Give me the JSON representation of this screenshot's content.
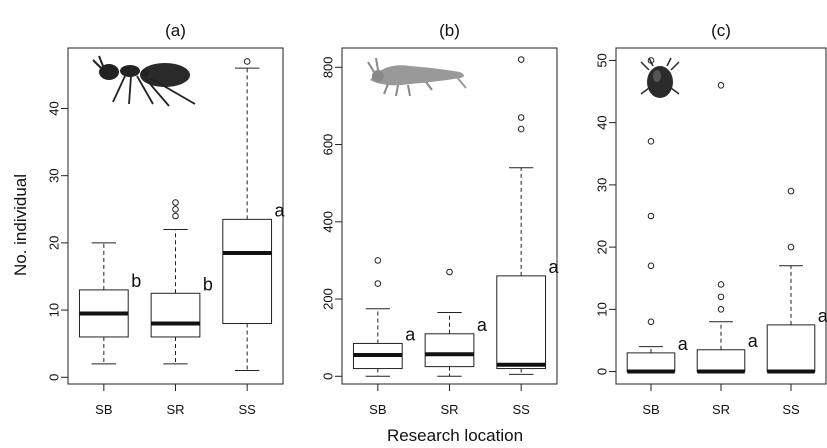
{
  "figure": {
    "ylabel": "No. individual",
    "xlabel": "Research location"
  },
  "icons": [
    "ant-icon",
    "springtail-icon",
    "mite-icon"
  ],
  "chart_data": [
    {
      "type": "box",
      "title": "(a)",
      "categories": [
        "SB",
        "SR",
        "SS"
      ],
      "ylim": [
        -1,
        49
      ],
      "yticks": [
        0,
        10,
        20,
        30,
        40
      ],
      "boxes": [
        {
          "category": "SB",
          "min": 2,
          "q1": 6,
          "median": 9.5,
          "q3": 13,
          "max": 20,
          "outliers": [],
          "letter": "b"
        },
        {
          "category": "SR",
          "min": 2,
          "q1": 6,
          "median": 8,
          "q3": 12.5,
          "max": 22,
          "outliers": [
            24,
            25,
            26
          ],
          "letter": "b"
        },
        {
          "category": "SS",
          "min": 1,
          "q1": 8,
          "median": 18.5,
          "q3": 23.5,
          "max": 46,
          "outliers": [
            47
          ],
          "letter": "a"
        }
      ]
    },
    {
      "type": "box",
      "title": "(b)",
      "categories": [
        "SB",
        "SR",
        "SS"
      ],
      "ylim": [
        -20,
        850
      ],
      "yticks": [
        0,
        200,
        400,
        600,
        800
      ],
      "boxes": [
        {
          "category": "SB",
          "min": 0,
          "q1": 20,
          "median": 55,
          "q3": 85,
          "max": 175,
          "outliers": [
            240,
            300
          ],
          "letter": "a"
        },
        {
          "category": "SR",
          "min": 0,
          "q1": 25,
          "median": 57,
          "q3": 110,
          "max": 165,
          "outliers": [
            270
          ],
          "letter": "a"
        },
        {
          "category": "SS",
          "min": 5,
          "q1": 20,
          "median": 30,
          "q3": 260,
          "max": 540,
          "outliers": [
            640,
            670,
            820
          ],
          "letter": "a"
        }
      ]
    },
    {
      "type": "box",
      "title": "(c)",
      "categories": [
        "SB",
        "SR",
        "SS"
      ],
      "ylim": [
        -2,
        52
      ],
      "yticks": [
        0,
        10,
        20,
        30,
        40,
        50
      ],
      "boxes": [
        {
          "category": "SB",
          "min": 0,
          "q1": 0,
          "median": 0,
          "q3": 3,
          "max": 4,
          "outliers": [
            8,
            17,
            25,
            37,
            50
          ],
          "letter": "a"
        },
        {
          "category": "SR",
          "min": 0,
          "q1": 0,
          "median": 0,
          "q3": 3.5,
          "max": 8,
          "outliers": [
            10,
            12,
            14,
            46
          ],
          "letter": "a"
        },
        {
          "category": "SS",
          "min": 0,
          "q1": 0,
          "median": 0,
          "q3": 7.5,
          "max": 17,
          "outliers": [
            20,
            29
          ],
          "letter": "a"
        }
      ]
    }
  ]
}
